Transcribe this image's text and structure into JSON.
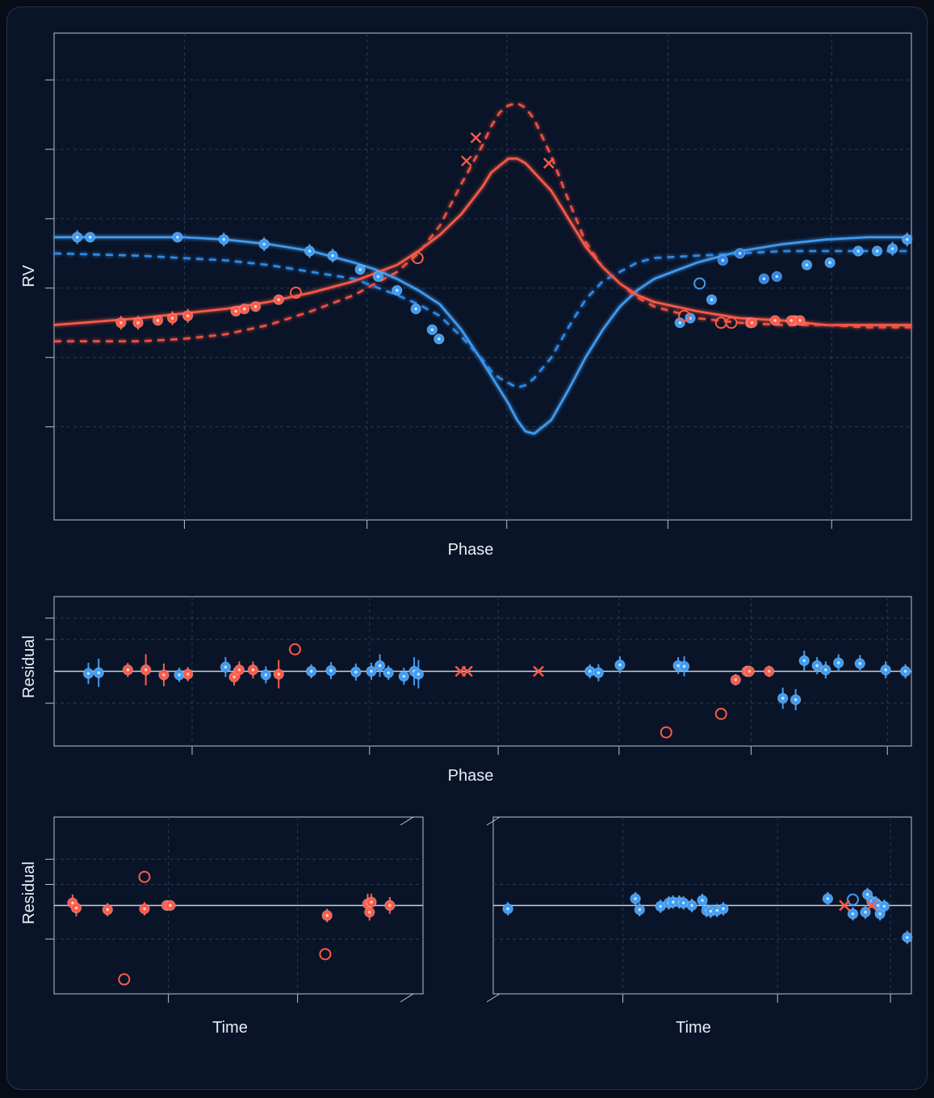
{
  "labels": {
    "rv_ylabel": "RV",
    "phase_xlabel_top": "Phase",
    "residual_ylabel_mid": "Residual",
    "phase_xlabel_mid": "Phase",
    "residual_ylabel_bottom": "Residual",
    "time_xlabel_left": "Time",
    "time_xlabel_right": "Time"
  },
  "colors": {
    "background": "#0a1428",
    "blue": "#3f9cf3",
    "red": "#ff5a47",
    "frame": "#b9c2cf",
    "grid": "#2b3a52"
  },
  "chart_data": [
    {
      "id": "rv",
      "type": "line",
      "xlabel": "Phase",
      "ylabel": "RV",
      "xlim": [
        0,
        1
      ],
      "ylim": [
        -1,
        1
      ],
      "xticks": [
        0.152,
        0.365,
        0.528,
        0.716,
        0.907
      ],
      "yticks": [
        0.85,
        0.55,
        0.25,
        -0.05,
        -0.35,
        -0.65,
        -0.96
      ],
      "grid": true,
      "models": [
        {
          "name": "blue-solid",
          "color": "#3f9cf3",
          "dash": false,
          "x": [
            0.0,
            0.1,
            0.15,
            0.2,
            0.25,
            0.3,
            0.35,
            0.375,
            0.4,
            0.425,
            0.45,
            0.475,
            0.5,
            0.51,
            0.52,
            0.53,
            0.54,
            0.55,
            0.56,
            0.58,
            0.6,
            0.62,
            0.64,
            0.66,
            0.68,
            0.7,
            0.75,
            0.8,
            0.85,
            0.9,
            0.95,
            1.0
          ],
          "y": [
            0.17,
            0.17,
            0.17,
            0.16,
            0.14,
            0.11,
            0.06,
            0.03,
            -0.01,
            -0.06,
            -0.12,
            -0.23,
            -0.37,
            -0.43,
            -0.49,
            -0.55,
            -0.62,
            -0.67,
            -0.68,
            -0.62,
            -0.49,
            -0.35,
            -0.23,
            -0.13,
            -0.06,
            -0.01,
            0.06,
            0.11,
            0.14,
            0.16,
            0.17,
            0.17
          ]
        },
        {
          "name": "red-solid",
          "color": "#ff5a47",
          "dash": false,
          "x": [
            0.0,
            0.1,
            0.15,
            0.2,
            0.25,
            0.3,
            0.35,
            0.4,
            0.425,
            0.45,
            0.475,
            0.5,
            0.51,
            0.52,
            0.53,
            0.54,
            0.55,
            0.56,
            0.58,
            0.6,
            0.62,
            0.64,
            0.66,
            0.68,
            0.7,
            0.75,
            0.8,
            0.85,
            0.9,
            0.95,
            1.0
          ],
          "y": [
            -0.21,
            -0.18,
            -0.16,
            -0.14,
            -0.11,
            -0.07,
            -0.02,
            0.05,
            0.11,
            0.18,
            0.27,
            0.39,
            0.45,
            0.48,
            0.51,
            0.51,
            0.49,
            0.45,
            0.37,
            0.25,
            0.13,
            0.04,
            -0.03,
            -0.08,
            -0.11,
            -0.15,
            -0.18,
            -0.19,
            -0.21,
            -0.21,
            -0.21
          ]
        },
        {
          "name": "blue-dashed",
          "color": "#2e8ae8",
          "dash": true,
          "x": [
            0.0,
            0.1,
            0.15,
            0.2,
            0.25,
            0.3,
            0.35,
            0.4,
            0.425,
            0.45,
            0.475,
            0.5,
            0.51,
            0.52,
            0.53,
            0.54,
            0.55,
            0.56,
            0.58,
            0.6,
            0.62,
            0.64,
            0.66,
            0.68,
            0.7,
            0.75,
            0.8,
            0.85,
            0.9,
            0.95,
            1.0
          ],
          "y": [
            0.1,
            0.09,
            0.08,
            0.07,
            0.05,
            0.02,
            -0.01,
            -0.08,
            -0.12,
            -0.17,
            -0.26,
            -0.36,
            -0.41,
            -0.44,
            -0.46,
            -0.48,
            -0.47,
            -0.44,
            -0.35,
            -0.22,
            -0.1,
            -0.02,
            0.02,
            0.06,
            0.08,
            0.09,
            0.1,
            0.11,
            0.11,
            0.11,
            0.11
          ]
        },
        {
          "name": "red-dashed",
          "color": "#f2513f",
          "dash": true,
          "x": [
            0.0,
            0.1,
            0.15,
            0.2,
            0.25,
            0.3,
            0.35,
            0.4,
            0.425,
            0.45,
            0.475,
            0.5,
            0.51,
            0.52,
            0.53,
            0.54,
            0.55,
            0.56,
            0.58,
            0.6,
            0.62,
            0.64,
            0.66,
            0.68,
            0.7,
            0.75,
            0.8,
            0.85,
            0.9,
            0.95,
            1.0
          ],
          "y": [
            -0.28,
            -0.28,
            -0.27,
            -0.25,
            -0.21,
            -0.15,
            -0.08,
            0.02,
            0.1,
            0.22,
            0.4,
            0.57,
            0.65,
            0.71,
            0.74,
            0.75,
            0.73,
            0.68,
            0.52,
            0.33,
            0.15,
            0.04,
            -0.03,
            -0.09,
            -0.13,
            -0.18,
            -0.2,
            -0.21,
            -0.21,
            -0.22,
            -0.22
          ]
        }
      ],
      "points": [
        {
          "series": "blue",
          "x": [
            0.027,
            0.042,
            0.144,
            0.198,
            0.245,
            0.298,
            0.325,
            0.357,
            0.378,
            0.4,
            0.422,
            0.441,
            0.449,
            0.73,
            0.742,
            0.767,
            0.878,
            0.905,
            0.938,
            0.96,
            0.978,
            0.995
          ],
          "y": [
            0.17,
            0.17,
            0.17,
            0.16,
            0.14,
            0.11,
            0.09,
            0.03,
            -0.0,
            -0.06,
            -0.14,
            -0.23,
            -0.27,
            -0.2,
            -0.18,
            -0.1,
            0.05,
            0.06,
            0.11,
            0.11,
            0.12,
            0.16
          ],
          "err": [
            0.03,
            0.02,
            0.02,
            0.03,
            0.03,
            0.03,
            0.03,
            0.02,
            0.02,
            0.02,
            0.02,
            0.02,
            0.02,
            0.02,
            0.02,
            0.02,
            0.02,
            0.02,
            0.02,
            0.02,
            0.03,
            0.03
          ]
        },
        {
          "series": "blue-dark",
          "x": [
            0.843,
            0.828,
            0.78,
            0.8
          ],
          "y": [
            0.0,
            -0.01,
            0.07,
            0.1
          ],
          "err": [
            0.02,
            0.02,
            0.02,
            0.02
          ]
        },
        {
          "series": "red",
          "x": [
            0.078,
            0.098,
            0.121,
            0.138,
            0.156,
            0.212,
            0.222,
            0.235,
            0.262,
            0.812,
            0.814,
            0.841,
            0.864,
            0.86,
            0.87
          ],
          "y": [
            -0.2,
            -0.2,
            -0.19,
            -0.18,
            -0.17,
            -0.15,
            -0.14,
            -0.13,
            -0.1,
            -0.2,
            -0.2,
            -0.19,
            -0.19,
            -0.19,
            -0.19
          ],
          "err": [
            0.03,
            0.03,
            0.02,
            0.03,
            0.03,
            0.02,
            0.02,
            0.02,
            0.02,
            0.02,
            0.02,
            0.02,
            0.02,
            0.02,
            0.02
          ]
        },
        {
          "series": "red-open",
          "x": [
            0.282,
            0.424,
            0.735,
            0.778,
            0.79
          ],
          "y": [
            -0.07,
            0.08,
            -0.17,
            -0.2,
            -0.2
          ]
        },
        {
          "series": "blue-open",
          "x": [
            0.753
          ],
          "y": [
            -0.03
          ]
        },
        {
          "series": "red-cross",
          "x": [
            0.481,
            0.492,
            0.577
          ],
          "y": [
            0.5,
            0.6,
            0.49
          ]
        }
      ]
    },
    {
      "id": "residual-phase",
      "type": "scatter",
      "xlabel": "Phase",
      "ylabel": "Residual",
      "xlim": [
        0,
        1
      ],
      "ylim": [
        -1,
        1
      ],
      "grid": true,
      "zero_line": true,
      "points": [
        {
          "series": "blue",
          "x": [
            0.04,
            0.052,
            0.146,
            0.2,
            0.247,
            0.3,
            0.323,
            0.352,
            0.37,
            0.38,
            0.39,
            0.408,
            0.42,
            0.425,
            0.625,
            0.635,
            0.66,
            0.728,
            0.735,
            0.85,
            0.865,
            0.875,
            0.89,
            0.9,
            0.915,
            0.94,
            0.97,
            0.993
          ],
          "y": [
            -0.03,
            -0.02,
            -0.05,
            0.06,
            -0.05,
            0.0,
            0.01,
            -0.01,
            0.0,
            0.08,
            -0.02,
            -0.07,
            0.0,
            -0.04,
            0.0,
            -0.02,
            0.09,
            0.08,
            0.07,
            -0.38,
            -0.4,
            0.15,
            0.08,
            0.02,
            0.12,
            0.11,
            0.02,
            0.0
          ],
          "err": [
            0.15,
            0.2,
            0.1,
            0.14,
            0.12,
            0.1,
            0.12,
            0.12,
            0.12,
            0.16,
            0.1,
            0.12,
            0.2,
            0.2,
            0.1,
            0.12,
            0.12,
            0.12,
            0.14,
            0.15,
            0.15,
            0.14,
            0.12,
            0.12,
            0.12,
            0.12,
            0.12,
            0.1
          ]
        },
        {
          "series": "red",
          "x": [
            0.086,
            0.107,
            0.128,
            0.156,
            0.21,
            0.216,
            0.232,
            0.262,
            0.795,
            0.808,
            0.811,
            0.834
          ],
          "y": [
            0.02,
            0.02,
            -0.05,
            -0.04,
            -0.08,
            0.02,
            0.02,
            -0.04,
            -0.12,
            0.0,
            0.0,
            0.0
          ],
          "err": [
            0.1,
            0.22,
            0.16,
            0.1,
            0.12,
            0.12,
            0.12,
            0.2,
            0.08,
            0.08,
            0.08,
            0.08
          ]
        },
        {
          "series": "red-open",
          "x": [
            0.281,
            0.714,
            0.778
          ],
          "y": [
            0.31,
            -0.86,
            -0.6
          ]
        },
        {
          "series": "red-cross",
          "x": [
            0.474,
            0.482,
            0.565
          ],
          "y": [
            0.0,
            0.0,
            0.0
          ]
        }
      ]
    },
    {
      "id": "residual-time-left",
      "type": "scatter",
      "xlabel": "Time",
      "ylabel": "Residual",
      "xlim": [
        0,
        1
      ],
      "ylim": [
        -1,
        1
      ],
      "grid": true,
      "zero_line": true,
      "points": [
        {
          "series": "red",
          "x": [
            0.05,
            0.06,
            0.145,
            0.245,
            0.305,
            0.315,
            0.74,
            0.85,
            0.855,
            0.86,
            0.91
          ],
          "y": [
            0.03,
            -0.03,
            -0.05,
            -0.04,
            0.0,
            0.0,
            -0.12,
            0.02,
            -0.08,
            0.04,
            0.0
          ],
          "err": [
            0.1,
            0.1,
            0.08,
            0.08,
            0.06,
            0.06,
            0.08,
            0.12,
            0.1,
            0.1,
            0.1
          ]
        },
        {
          "series": "red-open",
          "x": [
            0.245,
            0.19,
            0.735
          ],
          "y": [
            0.34,
            -0.88,
            -0.58
          ]
        }
      ]
    },
    {
      "id": "residual-time-right",
      "type": "scatter",
      "xlabel": "Time",
      "ylabel": "",
      "xlim": [
        0,
        1
      ],
      "ylim": [
        -1,
        1
      ],
      "grid": true,
      "zero_line": true,
      "points": [
        {
          "series": "blue",
          "x": [
            0.035,
            0.34,
            0.35,
            0.4,
            0.42,
            0.43,
            0.445,
            0.455,
            0.475,
            0.5,
            0.51,
            0.52,
            0.535,
            0.55,
            0.8,
            0.86,
            0.89,
            0.895,
            0.905,
            0.915,
            0.92,
            0.925,
            0.935,
            0.99
          ],
          "y": [
            -0.04,
            0.08,
            -0.05,
            -0.01,
            0.03,
            0.04,
            0.04,
            0.03,
            0.0,
            0.06,
            -0.06,
            -0.07,
            -0.06,
            -0.04,
            0.08,
            -0.1,
            -0.08,
            0.13,
            0.05,
            0.03,
            0.0,
            -0.1,
            -0.01,
            -0.38
          ],
          "err": [
            0.08,
            0.08,
            0.08,
            0.08,
            0.08,
            0.08,
            0.08,
            0.08,
            0.08,
            0.08,
            0.08,
            0.08,
            0.08,
            0.08,
            0.08,
            0.08,
            0.08,
            0.08,
            0.08,
            0.08,
            0.08,
            0.08,
            0.08,
            0.08
          ]
        },
        {
          "series": "blue-open",
          "x": [
            0.86
          ],
          "y": [
            0.07
          ]
        },
        {
          "series": "red-cross",
          "x": [
            0.84,
            0.905
          ],
          "y": [
            0.0,
            0.0
          ]
        }
      ]
    }
  ]
}
